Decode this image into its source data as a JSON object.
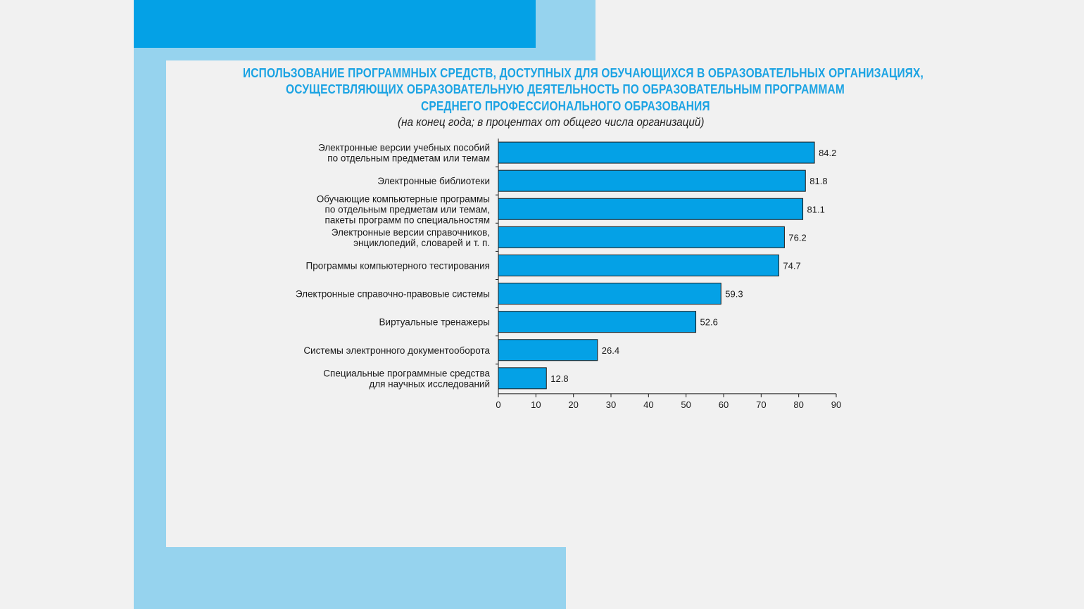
{
  "chart_data": {
    "type": "bar",
    "orientation": "horizontal",
    "title_lines": [
      "ИСПОЛЬЗОВАНИЕ ПРОГРАММНЫХ СРЕДСТВ, ДОСТУПНЫХ ДЛЯ ОБУЧАЮЩИХСЯ В ОБРАЗОВАТЕЛЬНЫХ ОРГАНИЗАЦИЯХ,",
      "ОСУЩЕСТВЛЯЮЩИХ ОБРАЗОВАТЕЛЬНУЮ ДЕЯТЕЛЬНОСТЬ ПО ОБРАЗОВАТЕЛЬНЫМ ПРОГРАММАМ",
      "СРЕДНЕГО ПРОФЕССИОНАЛЬНОГО ОБРАЗОВАНИЯ"
    ],
    "subtitle": "(на конец года; в процентах от общего числа организаций)",
    "categories": [
      [
        "Электронные версии учебных пособий",
        "по отдельным предметам или темам"
      ],
      [
        "Электронные библиотеки"
      ],
      [
        "Обучающие компьютерные программы",
        "по отдельным предметам или темам,",
        "пакеты программ по специальностям"
      ],
      [
        "Электронные версии справочников,",
        "энциклопедий, словарей и т. п."
      ],
      [
        "Программы компьютерного тестирования"
      ],
      [
        "Электронные справочно-правовые системы"
      ],
      [
        "Виртуальные тренажеры"
      ],
      [
        "Системы электронного документооборота"
      ],
      [
        "Специальные программные средства",
        "для научных исследований"
      ]
    ],
    "values": [
      84.2,
      81.8,
      81.1,
      76.2,
      74.7,
      59.3,
      52.6,
      26.4,
      12.8
    ],
    "value_labels": [
      "84.2",
      "81.8",
      "81.1",
      "76.2",
      "74.7",
      "59.3",
      "52.6",
      "26.4",
      "12.8"
    ],
    "x_ticks": [
      "0",
      "10",
      "20",
      "30",
      "40",
      "50",
      "60",
      "70",
      "80",
      "90"
    ],
    "xlim": [
      0,
      90
    ],
    "bar_color": "#04a1e6",
    "title_color": "#1ba3e3"
  }
}
